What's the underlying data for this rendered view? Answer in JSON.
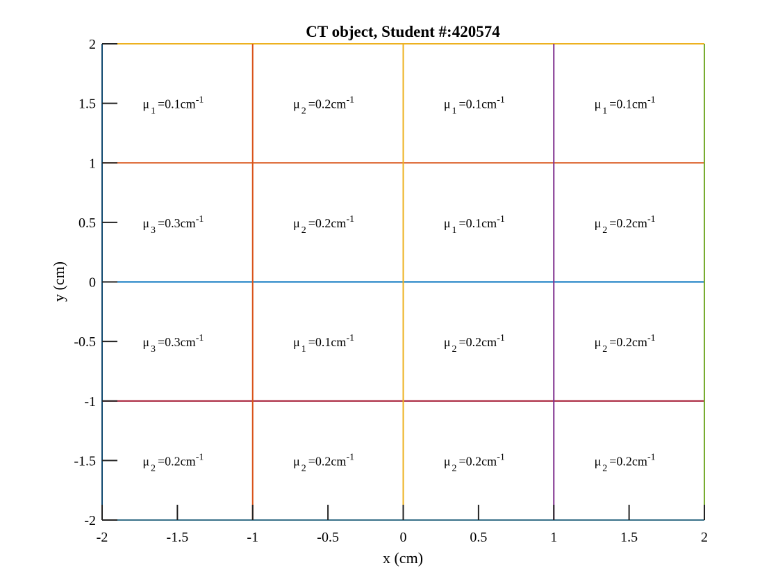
{
  "chart_data": {
    "type": "grid-diagram",
    "title": "CT object, Student #:420574",
    "xlabel": "x (cm)",
    "ylabel": "y (cm)",
    "xlim": [
      -2,
      2
    ],
    "ylim": [
      -2,
      2
    ],
    "xticks": [
      -2,
      -1.5,
      -1,
      -0.5,
      0,
      0.5,
      1,
      1.5,
      2
    ],
    "yticks": [
      -2,
      -1.5,
      -1,
      -0.5,
      0,
      0.5,
      1,
      1.5,
      2
    ],
    "tick_labels_x": [
      "-2",
      "-1.5",
      "-1",
      "-0.5",
      "0",
      "0.5",
      "1",
      "1.5",
      "2"
    ],
    "tick_labels_y": [
      "-2",
      "-1.5",
      "-1",
      "-0.5",
      "0",
      "0.5",
      "1",
      "1.5",
      "2"
    ],
    "vertical_lines": [
      {
        "x": -2,
        "color": "#0072BD"
      },
      {
        "x": -1,
        "color": "#D95319"
      },
      {
        "x": 0,
        "color": "#EDB120"
      },
      {
        "x": 1,
        "color": "#7E2F8E"
      },
      {
        "x": 2,
        "color": "#77AC30"
      }
    ],
    "horizontal_lines": [
      {
        "y": -2,
        "color": "#4DBEEE"
      },
      {
        "y": -1,
        "color": "#A2142F"
      },
      {
        "y": 0,
        "color": "#0072BD"
      },
      {
        "y": 1,
        "color": "#D95319"
      },
      {
        "y": 2,
        "color": "#EDB120"
      }
    ],
    "cell_labels": [
      {
        "x": -1.5,
        "y": 1.5,
        "sub": "1",
        "value": "=0.1cm"
      },
      {
        "x": -0.5,
        "y": 1.5,
        "sub": "2",
        "value": "=0.2cm"
      },
      {
        "x": 0.5,
        "y": 1.5,
        "sub": "1",
        "value": "=0.1cm"
      },
      {
        "x": 1.5,
        "y": 1.5,
        "sub": "1",
        "value": "=0.1cm"
      },
      {
        "x": -1.5,
        "y": 0.5,
        "sub": "3",
        "value": "=0.3cm"
      },
      {
        "x": -0.5,
        "y": 0.5,
        "sub": "2",
        "value": "=0.2cm"
      },
      {
        "x": 0.5,
        "y": 0.5,
        "sub": "1",
        "value": "=0.1cm"
      },
      {
        "x": 1.5,
        "y": 0.5,
        "sub": "2",
        "value": "=0.2cm"
      },
      {
        "x": -1.5,
        "y": -0.5,
        "sub": "3",
        "value": "=0.3cm"
      },
      {
        "x": -0.5,
        "y": -0.5,
        "sub": "1",
        "value": "=0.1cm"
      },
      {
        "x": 0.5,
        "y": -0.5,
        "sub": "2",
        "value": "=0.2cm"
      },
      {
        "x": 1.5,
        "y": -0.5,
        "sub": "2",
        "value": "=0.2cm"
      },
      {
        "x": -1.5,
        "y": -1.5,
        "sub": "2",
        "value": "=0.2cm"
      },
      {
        "x": -0.5,
        "y": -1.5,
        "sub": "2",
        "value": "=0.2cm"
      },
      {
        "x": 0.5,
        "y": -1.5,
        "sub": "2",
        "value": "=0.2cm"
      },
      {
        "x": 1.5,
        "y": -1.5,
        "sub": "2",
        "value": "=0.2cm"
      }
    ],
    "symbol": "μ",
    "exponent": "-1"
  }
}
